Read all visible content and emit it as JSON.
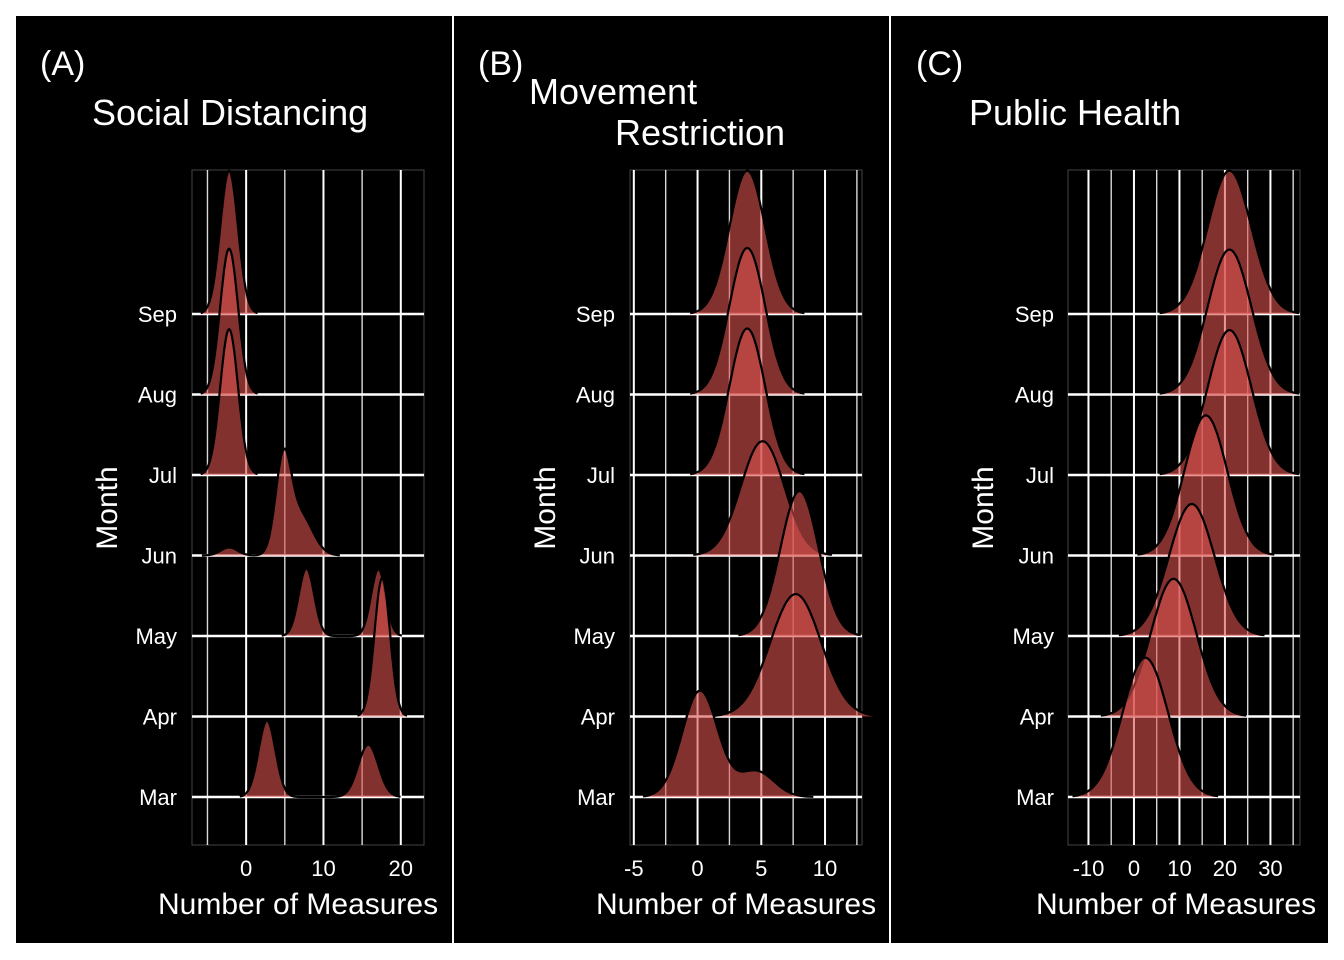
{
  "chart_data": [
    {
      "type": "ridgeline",
      "panel_label": "(A)",
      "title": "Social Distancing",
      "xlabel": "Number of Measures",
      "ylabel": "Month",
      "x_ticks": [
        "0",
        "10",
        "20"
      ],
      "x_tick_values": [
        0,
        10,
        20
      ],
      "xlim": [
        -7,
        23
      ],
      "grid": true,
      "categories": [
        "Mar",
        "Apr",
        "May",
        "Jun",
        "Jul",
        "Aug",
        "Sep"
      ],
      "series": [
        {
          "category": "Mar",
          "components": [
            {
              "mean": 2.7,
              "sd": 1.1,
              "peak": 0.95
            },
            {
              "mean": 15.8,
              "sd": 1.3,
              "peak": 0.65
            }
          ]
        },
        {
          "category": "Apr",
          "components": [
            {
              "mean": 17.6,
              "sd": 1.0,
              "peak": 1.72
            }
          ]
        },
        {
          "category": "May",
          "components": [
            {
              "mean": 7.8,
              "sd": 1.0,
              "peak": 0.84
            },
            {
              "mean": 17.1,
              "sd": 0.95,
              "peak": 0.83
            }
          ]
        },
        {
          "category": "Jun",
          "components": [
            {
              "mean": -2.2,
              "sd": 1.1,
              "peak": 0.1
            },
            {
              "mean": 4.8,
              "sd": 1.0,
              "peak": 1.12
            },
            {
              "mean": 7.0,
              "sd": 1.6,
              "peak": 0.5
            }
          ]
        },
        {
          "category": "Jul",
          "components": [
            {
              "mean": -2.2,
              "sd": 1.15,
              "peak": 1.81
            }
          ]
        },
        {
          "category": "Aug",
          "components": [
            {
              "mean": -2.2,
              "sd": 1.15,
              "peak": 1.81
            }
          ]
        },
        {
          "category": "Sep",
          "components": [
            {
              "mean": -2.2,
              "sd": 1.15,
              "peak": 1.78
            }
          ]
        }
      ]
    },
    {
      "type": "ridgeline",
      "panel_label": "(B)",
      "title_lines": [
        "Movement",
        "Restriction"
      ],
      "xlabel": "Number of Measures",
      "ylabel": "Month",
      "x_ticks": [
        "-5",
        "0",
        "5",
        "10"
      ],
      "x_tick_values": [
        -5,
        0,
        5,
        10
      ],
      "xlim": [
        -5.3,
        12.9
      ],
      "grid": true,
      "categories": [
        "Mar",
        "Apr",
        "May",
        "Jun",
        "Jul",
        "Aug",
        "Sep"
      ],
      "series": [
        {
          "category": "Mar",
          "components": [
            {
              "mean": 0.2,
              "sd": 1.4,
              "peak": 1.32
            },
            {
              "mean": 4.6,
              "sd": 1.4,
              "peak": 0.32
            }
          ]
        },
        {
          "category": "Apr",
          "components": [
            {
              "mean": 7.7,
              "sd": 2.0,
              "peak": 1.52
            }
          ]
        },
        {
          "category": "May",
          "components": [
            {
              "mean": 8.0,
              "sd": 1.5,
              "peak": 1.8
            }
          ]
        },
        {
          "category": "Jun",
          "components": [
            {
              "mean": 5.1,
              "sd": 1.7,
              "peak": 1.42
            }
          ]
        },
        {
          "category": "Jul",
          "components": [
            {
              "mean": 3.9,
              "sd": 1.4,
              "peak": 1.82
            }
          ]
        },
        {
          "category": "Aug",
          "components": [
            {
              "mean": 3.9,
              "sd": 1.4,
              "peak": 1.82
            }
          ]
        },
        {
          "category": "Sep",
          "components": [
            {
              "mean": 3.9,
              "sd": 1.4,
              "peak": 1.78
            }
          ]
        }
      ]
    },
    {
      "type": "ridgeline",
      "panel_label": "(C)",
      "title": "Public Health",
      "xlabel": "Number of Measures",
      "ylabel": "Month",
      "x_ticks": [
        "-10",
        "0",
        "10",
        "20",
        "30"
      ],
      "x_tick_values": [
        -10,
        0,
        10,
        20,
        30
      ],
      "xlim": [
        -14.5,
        36.5
      ],
      "grid": true,
      "categories": [
        "Mar",
        "Apr",
        "May",
        "Jun",
        "Jul",
        "Aug",
        "Sep"
      ],
      "series": [
        {
          "category": "Mar",
          "components": [
            {
              "mean": 2.5,
              "sd": 5.0,
              "peak": 1.73
            }
          ]
        },
        {
          "category": "Apr",
          "components": [
            {
              "mean": 8.7,
              "sd": 5.0,
              "peak": 1.71
            }
          ]
        },
        {
          "category": "May",
          "components": [
            {
              "mean": 12.7,
              "sd": 5.0,
              "peak": 1.64
            }
          ]
        },
        {
          "category": "Jun",
          "components": [
            {
              "mean": 15.8,
              "sd": 4.7,
              "peak": 1.74
            }
          ]
        },
        {
          "category": "Jul",
          "components": [
            {
              "mean": 21.0,
              "sd": 4.8,
              "peak": 1.8
            }
          ]
        },
        {
          "category": "Aug",
          "components": [
            {
              "mean": 21.0,
              "sd": 4.8,
              "peak": 1.8
            }
          ]
        },
        {
          "category": "Sep",
          "components": [
            {
              "mean": 21.0,
              "sd": 4.8,
              "peak": 1.78
            }
          ]
        }
      ]
    }
  ],
  "colors": {
    "background": "#000000",
    "fill": "#d9524f",
    "fill_opacity": 0.6,
    "outline": "#000000",
    "grid": "#ffffff",
    "text": "#ffffff",
    "separator": "#ffffff"
  }
}
